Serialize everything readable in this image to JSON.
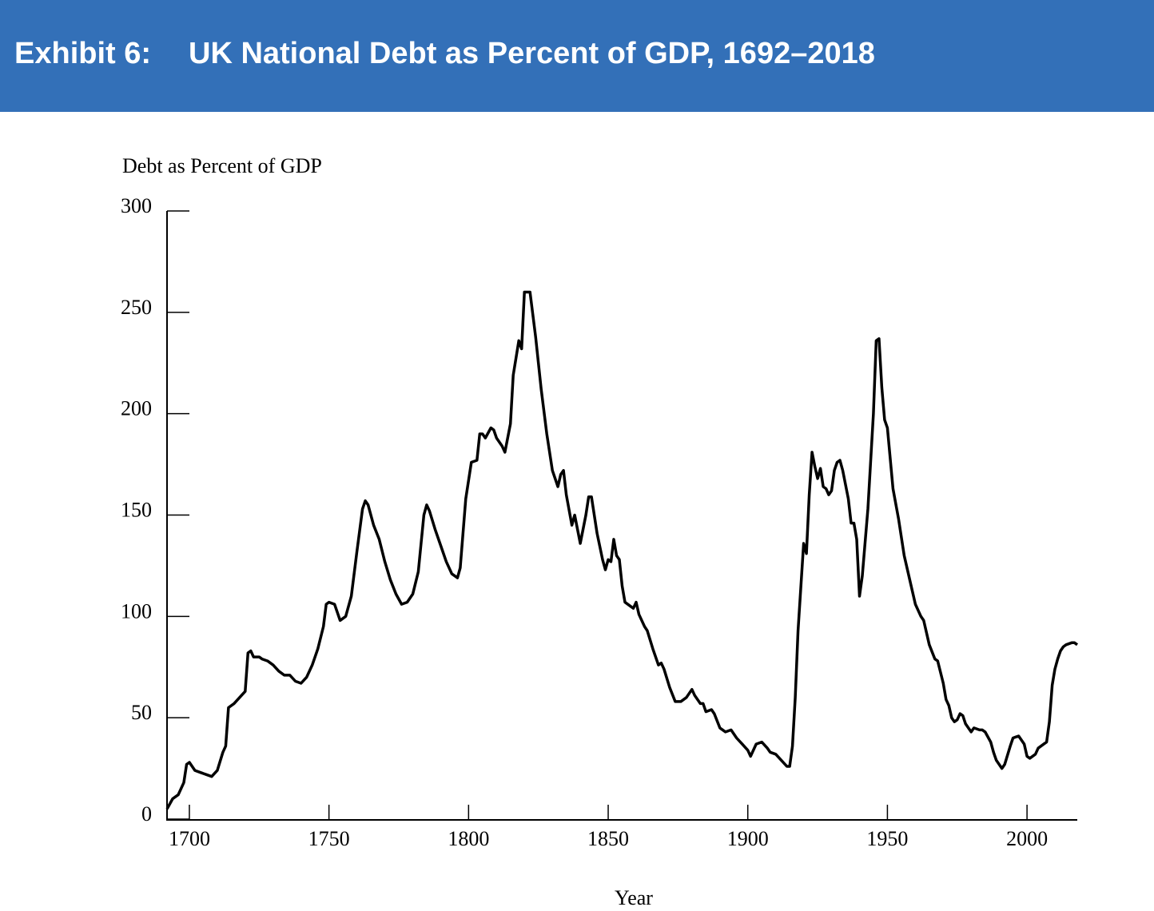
{
  "chart_data": {
    "type": "line",
    "label": "Exhibit 6:",
    "title": "UK National Debt as Percent of GDP, 1692–2018",
    "y_label": "Debt as Percent of GDP",
    "x_label": "Year",
    "color": "#000000",
    "xlim": [
      1692,
      2018
    ],
    "xticks": [
      1700,
      1750,
      1800,
      1850,
      1900,
      1950,
      2000
    ],
    "ylim": [
      0,
      300
    ],
    "yticks": [
      0,
      50,
      100,
      150,
      200,
      250,
      300
    ],
    "x": [
      1692,
      1694,
      1696,
      1698,
      1699,
      1700,
      1702,
      1704,
      1706,
      1708,
      1710,
      1712,
      1713,
      1714,
      1716,
      1718,
      1720,
      1721,
      1722,
      1723,
      1725,
      1726,
      1728,
      1730,
      1732,
      1734,
      1736,
      1738,
      1740,
      1742,
      1744,
      1746,
      1748,
      1749,
      1750,
      1752,
      1754,
      1756,
      1758,
      1760,
      1762,
      1763,
      1764,
      1766,
      1768,
      1770,
      1772,
      1774,
      1776,
      1778,
      1780,
      1782,
      1784,
      1785,
      1786,
      1788,
      1790,
      1792,
      1794,
      1796,
      1797,
      1799,
      1801,
      1803,
      1804,
      1805,
      1806,
      1808,
      1809,
      1810,
      1812,
      1813,
      1815,
      1816,
      1818,
      1819,
      1820,
      1821,
      1822,
      1824,
      1826,
      1828,
      1830,
      1832,
      1833,
      1834,
      1835,
      1837,
      1838,
      1840,
      1842,
      1843,
      1844,
      1846,
      1848,
      1849,
      1850,
      1851,
      1852,
      1853,
      1854,
      1855,
      1856,
      1858,
      1859,
      1860,
      1861,
      1863,
      1864,
      1866,
      1868,
      1869,
      1870,
      1872,
      1874,
      1876,
      1878,
      1880,
      1881,
      1883,
      1884,
      1885,
      1887,
      1888,
      1890,
      1892,
      1894,
      1896,
      1898,
      1900,
      1901,
      1903,
      1905,
      1907,
      1908,
      1910,
      1912,
      1914,
      1915,
      1916,
      1917,
      1918,
      1920,
      1921,
      1922,
      1923,
      1924,
      1925,
      1926,
      1927,
      1928,
      1929,
      1930,
      1931,
      1932,
      1933,
      1934,
      1936,
      1937,
      1938,
      1939,
      1940,
      1941,
      1943,
      1945,
      1946,
      1947,
      1948,
      1949,
      1950,
      1952,
      1954,
      1956,
      1958,
      1960,
      1962,
      1963,
      1965,
      1967,
      1968,
      1970,
      1971,
      1972,
      1973,
      1974,
      1975,
      1976,
      1977,
      1978,
      1980,
      1981,
      1983,
      1984,
      1985,
      1987,
      1988,
      1989,
      1991,
      1992,
      1994,
      1995,
      1997,
      1999,
      2000,
      2001,
      2003,
      2004,
      2006,
      2007,
      2008,
      2009,
      2010,
      2011,
      2012,
      2013,
      2014,
      2016,
      2017,
      2018
    ],
    "values": [
      5,
      10,
      12,
      18,
      27,
      28,
      24,
      23,
      22,
      21,
      24,
      33,
      36,
      55,
      57,
      60,
      63,
      82,
      83,
      80,
      80,
      79,
      78,
      76,
      73,
      71,
      71,
      68,
      67,
      70,
      76,
      84,
      95,
      106,
      107,
      106,
      98,
      100,
      110,
      132,
      153,
      157,
      155,
      145,
      138,
      127,
      118,
      111,
      106,
      107,
      111,
      122,
      150,
      155,
      152,
      143,
      135,
      127,
      121,
      119,
      124,
      158,
      176,
      177,
      190,
      190,
      188,
      193,
      192,
      188,
      184,
      181,
      195,
      219,
      236,
      232,
      260,
      260,
      260,
      238,
      212,
      190,
      172,
      164,
      170,
      172,
      160,
      145,
      150,
      136,
      150,
      159,
      159,
      141,
      128,
      123,
      128,
      127,
      138,
      130,
      128,
      115,
      107,
      105,
      104,
      107,
      101,
      95,
      93,
      84,
      76,
      77,
      74,
      65,
      58,
      58,
      60,
      64,
      61,
      57,
      57,
      53,
      54,
      52,
      45,
      43,
      44,
      40,
      37,
      34,
      31,
      37,
      38,
      35,
      33,
      32,
      29,
      26,
      26,
      36,
      60,
      93,
      136,
      131,
      160,
      181,
      174,
      168,
      173,
      164,
      163,
      160,
      162,
      172,
      176,
      177,
      172,
      158,
      146,
      146,
      138,
      110,
      120,
      153,
      200,
      236,
      237,
      213,
      197,
      193,
      163,
      148,
      130,
      118,
      106,
      100,
      98,
      86,
      79,
      78,
      67,
      59,
      56,
      50,
      48,
      49,
      52,
      51,
      47,
      43,
      45,
      44,
      44,
      43,
      38,
      33,
      29,
      25,
      27,
      36,
      40,
      41,
      37,
      31,
      30,
      32,
      35,
      37,
      38,
      48,
      66,
      74,
      79,
      83,
      85,
      86,
      87,
      87,
      86
    ]
  }
}
